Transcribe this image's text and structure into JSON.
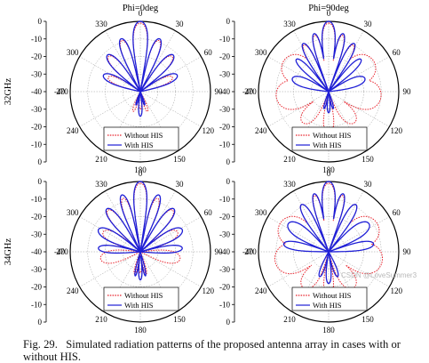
{
  "figure": {
    "caption_label": "Fig. 29.",
    "caption_text": "Simulated radiation patterns of the proposed antenna array in cases with or without HIS.",
    "watermark": "CSDN @LoveSummer3"
  },
  "colors": {
    "without_his": "#e8202a",
    "with_his": "#1f1fd6"
  },
  "chart_data": [
    {
      "type": "polar-line",
      "column_title": "Phi=0deg",
      "row_label": "32GHz",
      "radial_ticks": [
        "0",
        "-10",
        "-20",
        "-30",
        "-40"
      ],
      "rlim": [
        -40,
        0
      ],
      "angle_ticks": [
        "0",
        "30",
        "60",
        "90",
        "120",
        "150",
        "180",
        "210",
        "240",
        "270",
        "300",
        "330"
      ],
      "legend": {
        "position": "lower-right",
        "entries": [
          "Without HIS",
          "With HIS"
        ]
      },
      "series": [
        {
          "name": "Without HIS",
          "style": "dotted",
          "lobes": [
            {
              "angle": 0,
              "gain": -1,
              "width": 10
            },
            {
              "angle": 20,
              "gain": -9,
              "width": 8
            },
            {
              "angle": -20,
              "gain": -9,
              "width": 8
            },
            {
              "angle": 42,
              "gain": -13,
              "width": 10
            },
            {
              "angle": -42,
              "gain": -13,
              "width": 10
            },
            {
              "angle": 66,
              "gain": -20,
              "width": 12
            },
            {
              "angle": -66,
              "gain": -20,
              "width": 12
            },
            {
              "angle": 180,
              "gain": -30,
              "width": 12
            },
            {
              "angle": 160,
              "gain": -28,
              "width": 10
            },
            {
              "angle": 200,
              "gain": -28,
              "width": 10
            }
          ]
        },
        {
          "name": "With HIS",
          "style": "solid",
          "lobes": [
            {
              "angle": 0,
              "gain": 0,
              "width": 10
            },
            {
              "angle": 20,
              "gain": -8,
              "width": 8
            },
            {
              "angle": -20,
              "gain": -8,
              "width": 8
            },
            {
              "angle": 42,
              "gain": -12,
              "width": 10
            },
            {
              "angle": -42,
              "gain": -12,
              "width": 10
            },
            {
              "angle": 66,
              "gain": -17,
              "width": 12
            },
            {
              "angle": -66,
              "gain": -17,
              "width": 12
            },
            {
              "angle": 180,
              "gain": -26,
              "width": 10
            },
            {
              "angle": 162,
              "gain": -32,
              "width": 8
            },
            {
              "angle": 198,
              "gain": -32,
              "width": 8
            }
          ]
        }
      ]
    },
    {
      "type": "polar-line",
      "column_title": "Phi=90deg",
      "row_label": "32GHz",
      "radial_ticks": [
        "0",
        "-10",
        "-20",
        "-30",
        "-40"
      ],
      "rlim": [
        -40,
        0
      ],
      "angle_ticks": [
        "0",
        "30",
        "60",
        "90",
        "120",
        "150",
        "180",
        "210",
        "240",
        "270",
        "300",
        "330"
      ],
      "legend": {
        "position": "lower-right",
        "entries": [
          "Without HIS",
          "With HIS"
        ]
      },
      "series": [
        {
          "name": "Without HIS",
          "style": "dotted",
          "lobes": [
            {
              "angle": 0,
              "gain": -1,
              "width": 9
            },
            {
              "angle": 14,
              "gain": -7,
              "width": 6
            },
            {
              "angle": -14,
              "gain": -7,
              "width": 6
            },
            {
              "angle": 28,
              "gain": -10,
              "width": 7
            },
            {
              "angle": -28,
              "gain": -10,
              "width": 7
            },
            {
              "angle": 55,
              "gain": -9,
              "width": 28
            },
            {
              "angle": -55,
              "gain": -9,
              "width": 28
            },
            {
              "angle": 95,
              "gain": -10,
              "width": 30
            },
            {
              "angle": -95,
              "gain": -10,
              "width": 30
            },
            {
              "angle": 140,
              "gain": -17,
              "width": 20
            },
            {
              "angle": -140,
              "gain": -17,
              "width": 20
            },
            {
              "angle": 180,
              "gain": -16,
              "width": 14
            }
          ]
        },
        {
          "name": "With HIS",
          "style": "solid",
          "lobes": [
            {
              "angle": 0,
              "gain": 0,
              "width": 9
            },
            {
              "angle": 14,
              "gain": -6,
              "width": 6
            },
            {
              "angle": -14,
              "gain": -6,
              "width": 6
            },
            {
              "angle": 28,
              "gain": -9,
              "width": 7
            },
            {
              "angle": -28,
              "gain": -9,
              "width": 7
            },
            {
              "angle": 45,
              "gain": -14,
              "width": 8
            },
            {
              "angle": -45,
              "gain": -14,
              "width": 8
            },
            {
              "angle": 70,
              "gain": -18,
              "width": 14
            },
            {
              "angle": -70,
              "gain": -18,
              "width": 14
            },
            {
              "angle": 180,
              "gain": -28,
              "width": 10
            },
            {
              "angle": 165,
              "gain": -30,
              "width": 8
            },
            {
              "angle": 195,
              "gain": -30,
              "width": 8
            }
          ]
        }
      ]
    },
    {
      "type": "polar-line",
      "column_title": "",
      "row_label": "34GHz",
      "radial_ticks": [
        "0",
        "-10",
        "-20",
        "-30",
        "-40"
      ],
      "rlim": [
        -40,
        0
      ],
      "angle_ticks": [
        "0",
        "30",
        "60",
        "90",
        "120",
        "150",
        "180",
        "210",
        "240",
        "270",
        "300",
        "330"
      ],
      "legend": {
        "position": "lower-right",
        "entries": [
          "Without HIS",
          "With HIS"
        ]
      },
      "series": [
        {
          "name": "Without HIS",
          "style": "dotted",
          "lobes": [
            {
              "angle": 0,
              "gain": -1,
              "width": 9
            },
            {
              "angle": 18,
              "gain": -8,
              "width": 7
            },
            {
              "angle": -18,
              "gain": -8,
              "width": 7
            },
            {
              "angle": 38,
              "gain": -10,
              "width": 9
            },
            {
              "angle": -38,
              "gain": -10,
              "width": 9
            },
            {
              "angle": 62,
              "gain": -16,
              "width": 14
            },
            {
              "angle": -62,
              "gain": -16,
              "width": 14
            },
            {
              "angle": 100,
              "gain": -17,
              "width": 18
            },
            {
              "angle": -100,
              "gain": -17,
              "width": 18
            },
            {
              "angle": 180,
              "gain": -28,
              "width": 10
            },
            {
              "angle": 165,
              "gain": -27,
              "width": 8
            },
            {
              "angle": 195,
              "gain": -27,
              "width": 8
            }
          ]
        },
        {
          "name": "With HIS",
          "style": "solid",
          "lobes": [
            {
              "angle": 0,
              "gain": 0,
              "width": 9
            },
            {
              "angle": 18,
              "gain": -6,
              "width": 7
            },
            {
              "angle": -18,
              "gain": -6,
              "width": 7
            },
            {
              "angle": 38,
              "gain": -9,
              "width": 9
            },
            {
              "angle": -38,
              "gain": -9,
              "width": 9
            },
            {
              "angle": 62,
              "gain": -13,
              "width": 12
            },
            {
              "angle": -62,
              "gain": -13,
              "width": 12
            },
            {
              "angle": 85,
              "gain": -16,
              "width": 10
            },
            {
              "angle": -85,
              "gain": -16,
              "width": 10
            },
            {
              "angle": 180,
              "gain": -24,
              "width": 8
            },
            {
              "angle": 168,
              "gain": -26,
              "width": 6
            },
            {
              "angle": 192,
              "gain": -26,
              "width": 6
            }
          ]
        }
      ]
    },
    {
      "type": "polar-line",
      "column_title": "",
      "row_label": "34GHz",
      "radial_ticks": [
        "0",
        "-10",
        "-20",
        "-30",
        "-40"
      ],
      "rlim": [
        -40,
        0
      ],
      "angle_ticks": [
        "0",
        "30",
        "60",
        "90",
        "120",
        "150",
        "180",
        "210",
        "240",
        "270",
        "300",
        "330"
      ],
      "legend": {
        "position": "lower-right",
        "entries": [
          "Without HIS",
          "With HIS"
        ]
      },
      "series": [
        {
          "name": "Without HIS",
          "style": "dotted",
          "lobes": [
            {
              "angle": 0,
              "gain": -1,
              "width": 9
            },
            {
              "angle": 14,
              "gain": -7,
              "width": 6
            },
            {
              "angle": -14,
              "gain": -7,
              "width": 6
            },
            {
              "angle": 30,
              "gain": -9,
              "width": 8
            },
            {
              "angle": -30,
              "gain": -9,
              "width": 8
            },
            {
              "angle": 60,
              "gain": -8,
              "width": 28
            },
            {
              "angle": -60,
              "gain": -8,
              "width": 28
            },
            {
              "angle": 100,
              "gain": -9,
              "width": 30
            },
            {
              "angle": -100,
              "gain": -9,
              "width": 30
            },
            {
              "angle": 145,
              "gain": -15,
              "width": 20
            },
            {
              "angle": -145,
              "gain": -15,
              "width": 20
            },
            {
              "angle": 180,
              "gain": -14,
              "width": 12
            }
          ]
        },
        {
          "name": "With HIS",
          "style": "solid",
          "lobes": [
            {
              "angle": 0,
              "gain": 0,
              "width": 9
            },
            {
              "angle": 14,
              "gain": -6,
              "width": 6
            },
            {
              "angle": -14,
              "gain": -6,
              "width": 6
            },
            {
              "angle": 30,
              "gain": -9,
              "width": 8
            },
            {
              "angle": -30,
              "gain": -9,
              "width": 8
            },
            {
              "angle": 55,
              "gain": -12,
              "width": 14
            },
            {
              "angle": -55,
              "gain": -12,
              "width": 14
            },
            {
              "angle": 80,
              "gain": -14,
              "width": 10
            },
            {
              "angle": -80,
              "gain": -14,
              "width": 10
            },
            {
              "angle": 180,
              "gain": -22,
              "width": 10
            },
            {
              "angle": 160,
              "gain": -25,
              "width": 10
            },
            {
              "angle": 200,
              "gain": -25,
              "width": 10
            }
          ]
        }
      ]
    }
  ]
}
